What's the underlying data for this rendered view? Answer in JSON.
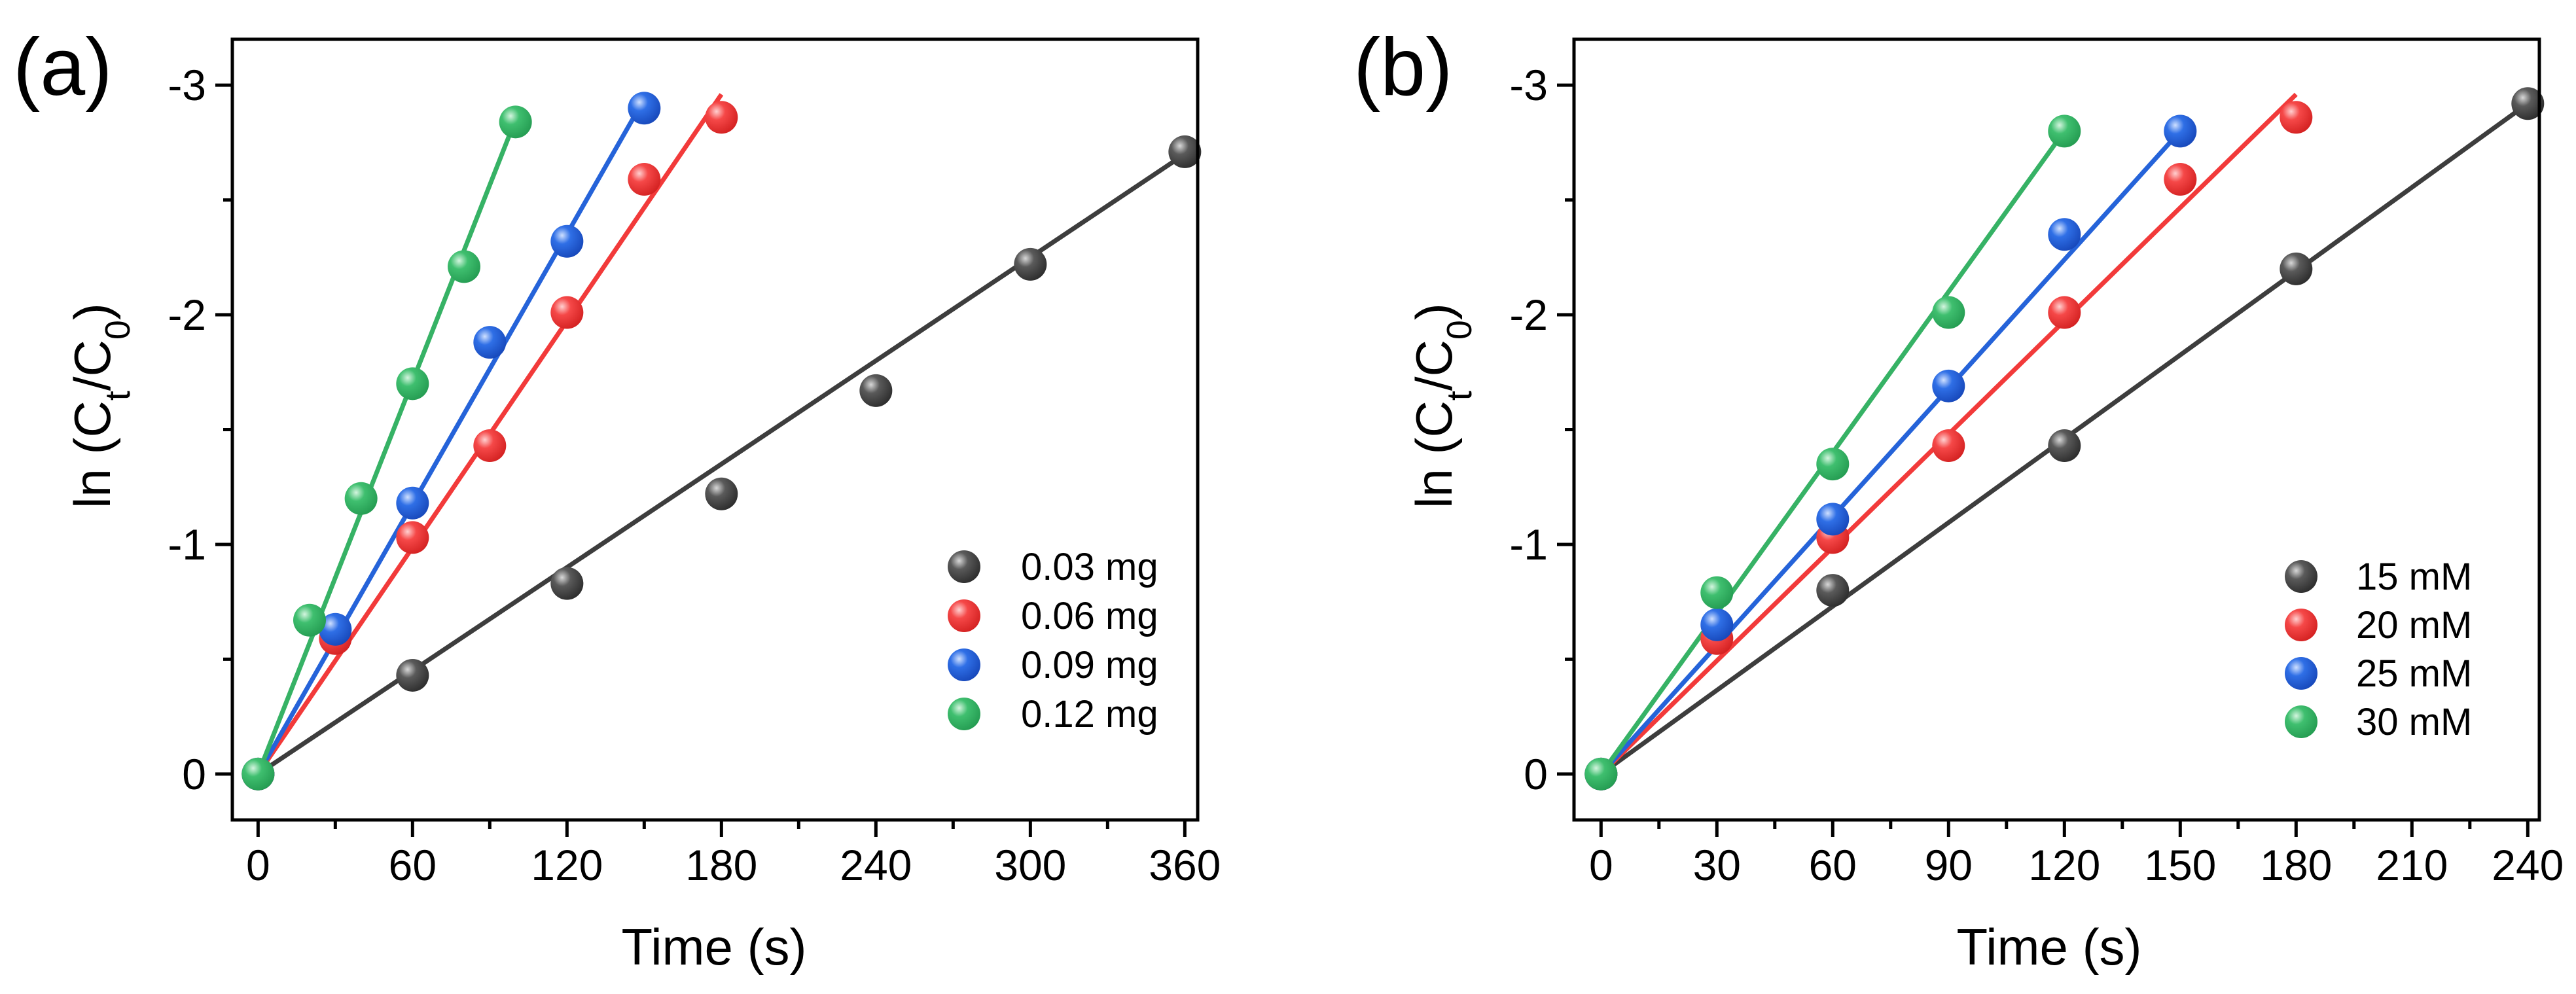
{
  "colors": {
    "black": "#3d3d3d",
    "red": "#f23a3a",
    "blue": "#2563d9",
    "green": "#36b265"
  },
  "chart_data": [
    {
      "type": "scatter",
      "panel_label": "(a)",
      "xlabel": "Time (s)",
      "ylabel": {
        "prefix": "ln (C",
        "sub1": "t",
        "mid": "/C",
        "sub2": "0",
        "suffix": ")"
      },
      "xlim": [
        -10,
        365
      ],
      "ylim": [
        0.2,
        -3.2
      ],
      "xticks": [
        0,
        60,
        120,
        180,
        240,
        300,
        360
      ],
      "yticks": [
        0,
        -1,
        -2,
        -3
      ],
      "xtick_labels": [
        "0",
        "60",
        "120",
        "180",
        "240",
        "300",
        "360"
      ],
      "ytick_labels": [
        "0",
        "-1",
        "-2",
        "-3"
      ],
      "legend_position": "lower-right",
      "series": [
        {
          "name": "0.03 mg",
          "color_key": "black",
          "x": [
            0,
            60,
            120,
            180,
            240,
            300,
            360
          ],
          "y": [
            0,
            -0.43,
            -0.83,
            -1.22,
            -1.67,
            -2.22,
            -2.71
          ],
          "fit": [
            [
              0,
              0
            ],
            [
              360,
              -2.7
            ]
          ]
        },
        {
          "name": "0.06 mg",
          "color_key": "red",
          "x": [
            0,
            30,
            60,
            90,
            120,
            150,
            180
          ],
          "y": [
            0,
            -0.59,
            -1.03,
            -1.43,
            -2.01,
            -2.59,
            -2.86
          ],
          "fit": [
            [
              0,
              0
            ],
            [
              180,
              -2.96
            ]
          ]
        },
        {
          "name": "0.09 mg",
          "color_key": "blue",
          "x": [
            0,
            30,
            60,
            90,
            120,
            150
          ],
          "y": [
            0,
            -0.63,
            -1.18,
            -1.88,
            -2.32,
            -2.9
          ],
          "fit": [
            [
              0,
              0
            ],
            [
              150,
              -2.94
            ]
          ]
        },
        {
          "name": "0.12 mg",
          "color_key": "green",
          "x": [
            0,
            20,
            40,
            60,
            80,
            100
          ],
          "y": [
            0,
            -0.67,
            -1.2,
            -1.7,
            -2.21,
            -2.84
          ],
          "fit": [
            [
              0,
              0
            ],
            [
              100,
              -2.85
            ]
          ]
        }
      ]
    },
    {
      "type": "scatter",
      "panel_label": "(b)",
      "xlabel": "Time (s)",
      "ylabel": {
        "prefix": "ln (C",
        "sub1": "t",
        "mid": "/C",
        "sub2": "0",
        "suffix": ")"
      },
      "xlim": [
        -7,
        243
      ],
      "ylim": [
        0.2,
        -3.2
      ],
      "xticks": [
        0,
        30,
        60,
        90,
        120,
        150,
        180,
        210,
        240
      ],
      "yticks": [
        0,
        -1,
        -2,
        -3
      ],
      "xtick_labels": [
        "0",
        "30",
        "60",
        "90",
        "120",
        "150",
        "180",
        "210",
        "240"
      ],
      "ytick_labels": [
        "0",
        "-1",
        "-2",
        "-3"
      ],
      "legend_position": "lower-right",
      "series": [
        {
          "name": "15 mM",
          "color_key": "black",
          "x": [
            0,
            60,
            120,
            180,
            240
          ],
          "y": [
            0,
            -0.8,
            -1.43,
            -2.2,
            -2.92
          ],
          "fit": [
            [
              0,
              0
            ],
            [
              240,
              -2.92
            ]
          ]
        },
        {
          "name": "20 mM",
          "color_key": "red",
          "x": [
            0,
            30,
            60,
            90,
            120,
            150,
            180
          ],
          "y": [
            0,
            -0.59,
            -1.03,
            -1.43,
            -2.01,
            -2.59,
            -2.86
          ],
          "fit": [
            [
              0,
              0
            ],
            [
              180,
              -2.96
            ]
          ]
        },
        {
          "name": "25 mM",
          "color_key": "blue",
          "x": [
            0,
            30,
            60,
            90,
            120,
            150
          ],
          "y": [
            0,
            -0.65,
            -1.11,
            -1.69,
            -2.35,
            -2.8
          ],
          "fit": [
            [
              0,
              0
            ],
            [
              150,
              -2.8
            ]
          ]
        },
        {
          "name": "30 mM",
          "color_key": "green",
          "x": [
            0,
            30,
            60,
            90,
            120
          ],
          "y": [
            0,
            -0.79,
            -1.35,
            -2.01,
            -2.8
          ],
          "fit": [
            [
              0,
              0
            ],
            [
              120,
              -2.8
            ]
          ]
        }
      ]
    }
  ]
}
